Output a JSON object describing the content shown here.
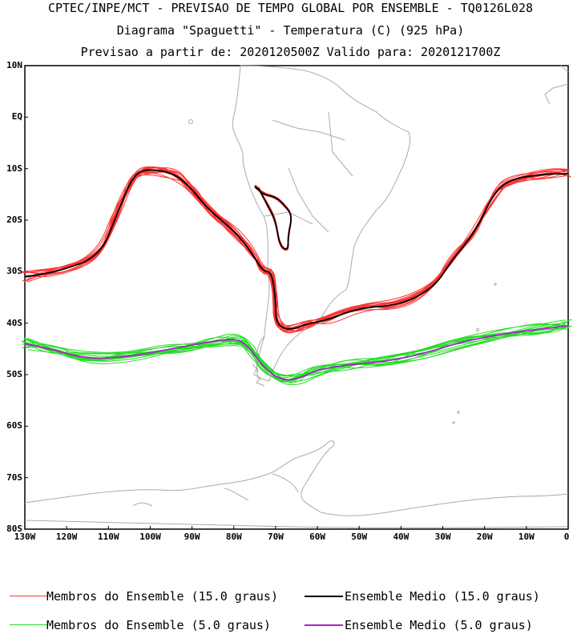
{
  "header": {
    "line1": "CPTEC/INPE/MCT - PREVISAO DE TEMPO GLOBAL POR ENSEMBLE - TQ0126L028",
    "line2": "Diagrama \"Spaguetti\" - Temperatura (C) (925 hPa)",
    "line3": "Previsao a partir de: 2020120500Z  Valido para: 2020121700Z"
  },
  "map": {
    "lat_labels": [
      "10N",
      "EQ",
      "10S",
      "20S",
      "30S",
      "40S",
      "50S",
      "60S",
      "70S",
      "80S"
    ],
    "lon_labels": [
      "130W",
      "120W",
      "110W",
      "100W",
      "90W",
      "80W",
      "70W",
      "60W",
      "50W",
      "40W",
      "30W",
      "20W",
      "10W",
      "0"
    ],
    "lat_range": [
      10,
      -80
    ],
    "lon_range": [
      -130,
      0
    ]
  },
  "legend": {
    "red_members": "Membros do Ensemble (15.0 graus)",
    "black_mean": "Ensemble Medio (15.0 graus)",
    "green_members": "Membros do Ensemble (5.0 graus)",
    "purple_mean": "Ensemble Medio (5.0 graus)"
  },
  "colors": {
    "red": "#ff3333",
    "green": "#22dd22",
    "black": "#000000",
    "purple": "#aa22cc",
    "coast": "#aaaaaa"
  },
  "contours": {
    "mean_15": [
      [
        -130,
        -31
      ],
      [
        -122,
        -30
      ],
      [
        -112,
        -27
      ],
      [
        -108,
        -19
      ],
      [
        -104,
        -11
      ],
      [
        -100,
        -10
      ],
      [
        -94,
        -11
      ],
      [
        -90,
        -14
      ],
      [
        -86,
        -18
      ],
      [
        -80,
        -22
      ],
      [
        -76,
        -26
      ],
      [
        -73,
        -30
      ],
      [
        -71,
        -30
      ],
      [
        -70,
        -35
      ],
      [
        -70,
        -40
      ],
      [
        -67,
        -41.5
      ],
      [
        -62,
        -40
      ],
      [
        -58,
        -39.5
      ],
      [
        -50,
        -37
      ],
      [
        -40,
        -36.5
      ],
      [
        -32,
        -33
      ],
      [
        -28,
        -28
      ],
      [
        -22,
        -22
      ],
      [
        -18,
        -15
      ],
      [
        -14,
        -12
      ],
      [
        -5,
        -11
      ],
      [
        0,
        -11
      ]
    ],
    "andes_15": [
      [
        -75,
        -13.5
      ],
      [
        -73,
        -15
      ],
      [
        -70,
        -15.5
      ],
      [
        -68,
        -17
      ],
      [
        -66,
        -19
      ],
      [
        -67,
        -23
      ],
      [
        -67,
        -26
      ],
      [
        -69,
        -25
      ],
      [
        -70,
        -20
      ],
      [
        -72,
        -17
      ],
      [
        -74,
        -14
      ]
    ],
    "mean_5": [
      [
        -130,
        -44
      ],
      [
        -124,
        -45
      ],
      [
        -115,
        -47
      ],
      [
        -105,
        -46.5
      ],
      [
        -95,
        -45
      ],
      [
        -85,
        -43.5
      ],
      [
        -79,
        -43
      ],
      [
        -76,
        -45
      ],
      [
        -73,
        -48.5
      ],
      [
        -69,
        -51
      ],
      [
        -65,
        -51
      ],
      [
        -60,
        -49
      ],
      [
        -52,
        -48
      ],
      [
        -44,
        -47.5
      ],
      [
        -35,
        -46
      ],
      [
        -25,
        -43.5
      ],
      [
        -15,
        -42
      ],
      [
        -5,
        -41
      ],
      [
        0,
        -40.5
      ]
    ]
  }
}
